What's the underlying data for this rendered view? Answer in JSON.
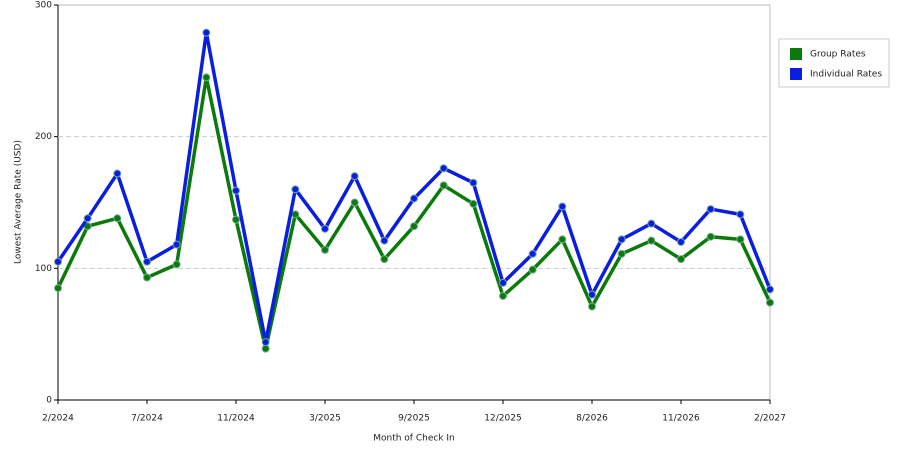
{
  "chart_data": {
    "type": "line",
    "x_label": "Month of Check In",
    "y_label": "Lowest Average Rate (USD)",
    "categories": [
      "2/2024",
      null,
      null,
      "7/2024",
      null,
      null,
      "11/2024",
      null,
      null,
      "3/2025",
      null,
      null,
      "9/2025",
      null,
      null,
      "12/2025",
      null,
      null,
      "8/2026",
      null,
      null,
      "11/2026",
      null,
      null,
      "2/2027"
    ],
    "series": [
      {
        "name": "Group Rates",
        "color": "#0a7a0a",
        "values": [
          85,
          132,
          138,
          93,
          103,
          245,
          137,
          39,
          141,
          114,
          150,
          107,
          132,
          163,
          149,
          79,
          99,
          122,
          71,
          111,
          121,
          107,
          124,
          122,
          74
        ]
      },
      {
        "name": "Individual Rates",
        "color": "#0a1ee0",
        "values": [
          105,
          138,
          172,
          105,
          118,
          279,
          159,
          44,
          160,
          130,
          170,
          121,
          153,
          176,
          165,
          89,
          111,
          147,
          80,
          122,
          134,
          120,
          145,
          141,
          84
        ]
      }
    ],
    "ylim": [
      0,
      300
    ],
    "yticks": [
      0,
      100,
      200,
      300
    ],
    "grid": true,
    "legend": "right"
  }
}
